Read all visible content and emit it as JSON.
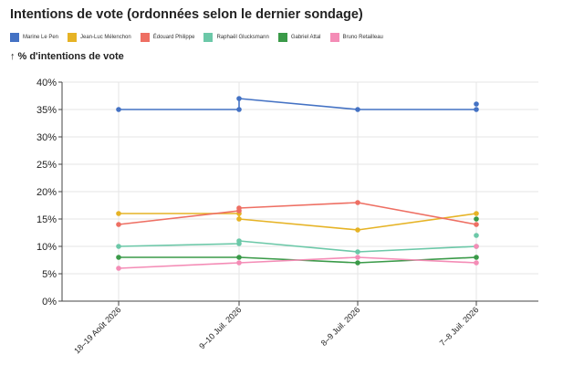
{
  "chart_data": {
    "type": "line",
    "title": "Intentions de vote (ordonnées selon le dernier sondage)",
    "ylabel": "% d'intentions de vote",
    "ylim": [
      0,
      40
    ],
    "yticks": [
      "0%",
      "5%",
      "10%",
      "15%",
      "20%",
      "25%",
      "30%",
      "35%",
      "40%"
    ],
    "categories": [
      "18–19 Août 2026",
      "9–10 Juil. 2026",
      "8–9 Juil. 2026",
      "7–8 Juil. 2026"
    ],
    "grid": true,
    "legend_position": "top",
    "series": [
      {
        "name": "Marine Le Pen",
        "color": "#4472c4",
        "points": [
          [
            0,
            35
          ],
          [
            1,
            35
          ],
          [
            1,
            37
          ],
          [
            2,
            35
          ],
          [
            3,
            35
          ],
          [
            3,
            36
          ]
        ],
        "line": [
          [
            0,
            35
          ],
          [
            1,
            35
          ],
          [
            1,
            37
          ],
          [
            2,
            35
          ],
          [
            3,
            35
          ]
        ]
      },
      {
        "name": "Jean-Luc Mélenchon",
        "color": "#e6b325",
        "points": [
          [
            0,
            16
          ],
          [
            1,
            16
          ],
          [
            1,
            15
          ],
          [
            2,
            13
          ],
          [
            3,
            16
          ]
        ],
        "line": [
          [
            0,
            16
          ],
          [
            1,
            16
          ],
          [
            1,
            15
          ],
          [
            2,
            13
          ],
          [
            3,
            16
          ]
        ]
      },
      {
        "name": "Édouard Philippe",
        "color": "#ee6f63",
        "points": [
          [
            0,
            14
          ],
          [
            1,
            16.5
          ],
          [
            1,
            17
          ],
          [
            2,
            18
          ],
          [
            3,
            14
          ]
        ],
        "line": [
          [
            0,
            14
          ],
          [
            1,
            16.5
          ],
          [
            1,
            17
          ],
          [
            2,
            18
          ],
          [
            3,
            14
          ]
        ]
      },
      {
        "name": "Raphaël Glucksmann",
        "color": "#6cc8a8",
        "points": [
          [
            0,
            10
          ],
          [
            1,
            10.5
          ],
          [
            1,
            11
          ],
          [
            2,
            9
          ],
          [
            3,
            10
          ],
          [
            3,
            12
          ]
        ],
        "line": [
          [
            0,
            10
          ],
          [
            1,
            10.5
          ],
          [
            1,
            11
          ],
          [
            2,
            9
          ],
          [
            3,
            10
          ]
        ]
      },
      {
        "name": "Gabriel Attal",
        "color": "#3a9a48",
        "points": [
          [
            0,
            8
          ],
          [
            1,
            8
          ],
          [
            2,
            7
          ],
          [
            3,
            8
          ],
          [
            3,
            15
          ]
        ],
        "line": [
          [
            0,
            8
          ],
          [
            1,
            8
          ],
          [
            2,
            7
          ],
          [
            3,
            8
          ]
        ]
      },
      {
        "name": "Bruno Retailleau",
        "color": "#f48cb6",
        "points": [
          [
            0,
            6
          ],
          [
            1,
            7
          ],
          [
            2,
            8
          ],
          [
            3,
            7
          ],
          [
            3,
            10
          ]
        ],
        "line": [
          [
            0,
            6
          ],
          [
            1,
            7
          ],
          [
            2,
            8
          ],
          [
            3,
            7
          ]
        ]
      }
    ]
  },
  "ylabel_arrow": "↑"
}
